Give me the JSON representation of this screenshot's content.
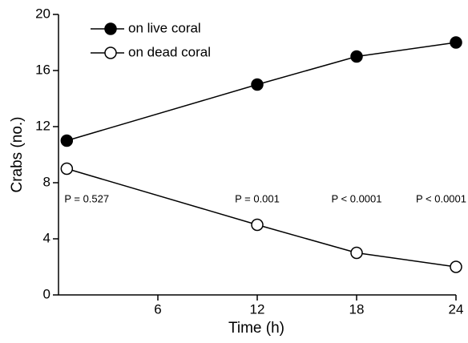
{
  "chart_data": {
    "type": "line",
    "x_label": "Time (h)",
    "y_label": "Crabs (no.)",
    "x": [
      0.5,
      12,
      18,
      24
    ],
    "series": [
      {
        "name": "on live coral",
        "color": "#000000",
        "marker_fill": "#000000",
        "values": [
          11,
          15,
          17,
          18
        ]
      },
      {
        "name": "on dead coral",
        "color": "#000000",
        "marker_fill": "#ffffff",
        "values": [
          9,
          5,
          3,
          2
        ]
      }
    ],
    "annotations": [
      "P = 0.527",
      "P = 0.001",
      "P < 0.0001",
      "P < 0.0001"
    ],
    "xlim": [
      0,
      24
    ],
    "xticks": [
      6,
      12,
      18,
      24
    ],
    "ylim": [
      0,
      20
    ],
    "yticks": [
      0,
      4,
      8,
      12,
      16,
      20
    ],
    "legend": "upper left",
    "grid": false
  }
}
